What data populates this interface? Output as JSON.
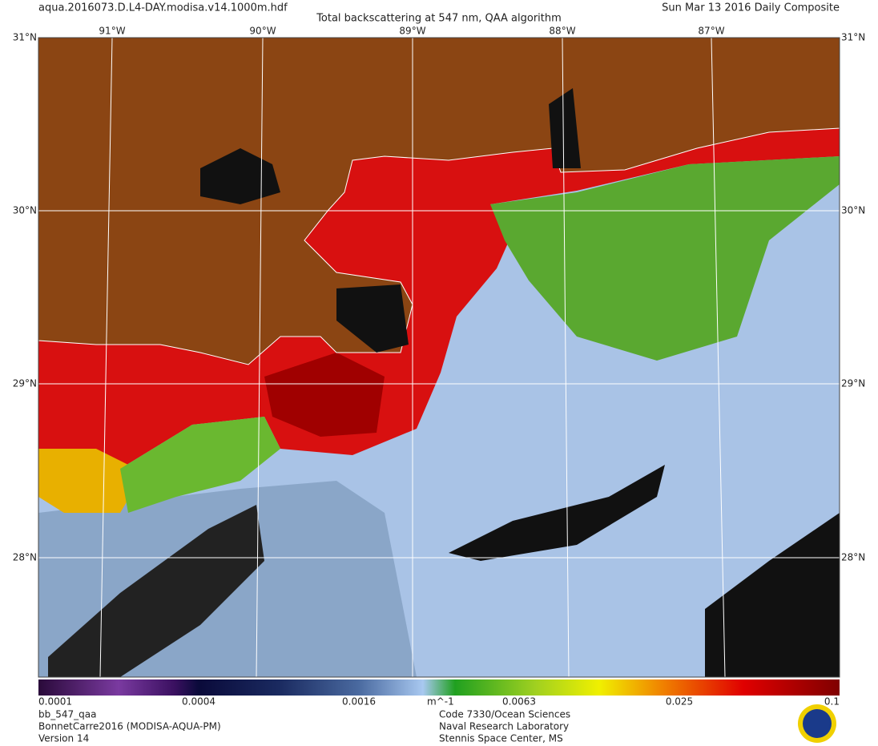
{
  "header": {
    "file": "aqua.2016073.D.L4-DAY.modisa.v14.1000m.hdf",
    "title": "Total backscattering at 547 nm, QAA algorithm",
    "date": "Sun Mar 13 2016 Daily Composite"
  },
  "map": {
    "lon_labels": [
      "91°W",
      "90°W",
      "89°W",
      "88°W",
      "87°W"
    ],
    "lat_labels": [
      "31°N",
      "30°N",
      "29°N",
      "28°N"
    ]
  },
  "colorbar": {
    "ticks": [
      "0.0001",
      "0.0004",
      "0.0016",
      "0.0063",
      "0.025",
      "0.1"
    ],
    "unit": "m^-1"
  },
  "footer": {
    "left": [
      "bb_547_qaa",
      "BonnetCarre2016 (MODISA-AQUA-PM)",
      "Version 14"
    ],
    "right": [
      "Code 7330/Ocean Sciences",
      "Naval Research Laboratory",
      "Stennis Space Center, MS"
    ]
  }
}
